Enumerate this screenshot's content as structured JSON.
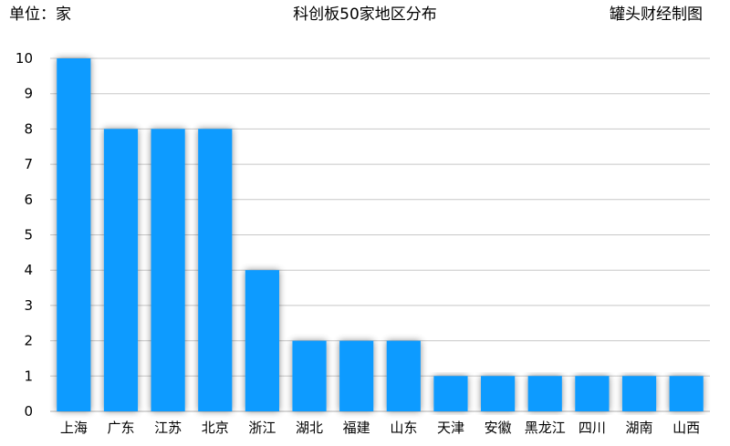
{
  "header": {
    "unit": "单位：家",
    "title": "科创板50家地区分布",
    "source": "罐头财经制图"
  },
  "colors": {
    "bar": "#0d9bff",
    "grid": "#c8c8c8",
    "axis": "#b0b0b0"
  },
  "chart_data": {
    "type": "bar",
    "title": "科创板50家地区分布",
    "xlabel": "",
    "ylabel": "单位：家",
    "ylim": [
      0,
      10
    ],
    "yticks": [
      0,
      1,
      2,
      3,
      4,
      5,
      6,
      7,
      8,
      9,
      10
    ],
    "grid": true,
    "categories": [
      "上海",
      "广东",
      "江苏",
      "北京",
      "浙江",
      "湖北",
      "福建",
      "山东",
      "天津",
      "安徽",
      "黑龙江",
      "四川",
      "湖南",
      "山西"
    ],
    "values": [
      10,
      8,
      8,
      8,
      4,
      2,
      2,
      2,
      1,
      1,
      1,
      1,
      1,
      1
    ]
  }
}
